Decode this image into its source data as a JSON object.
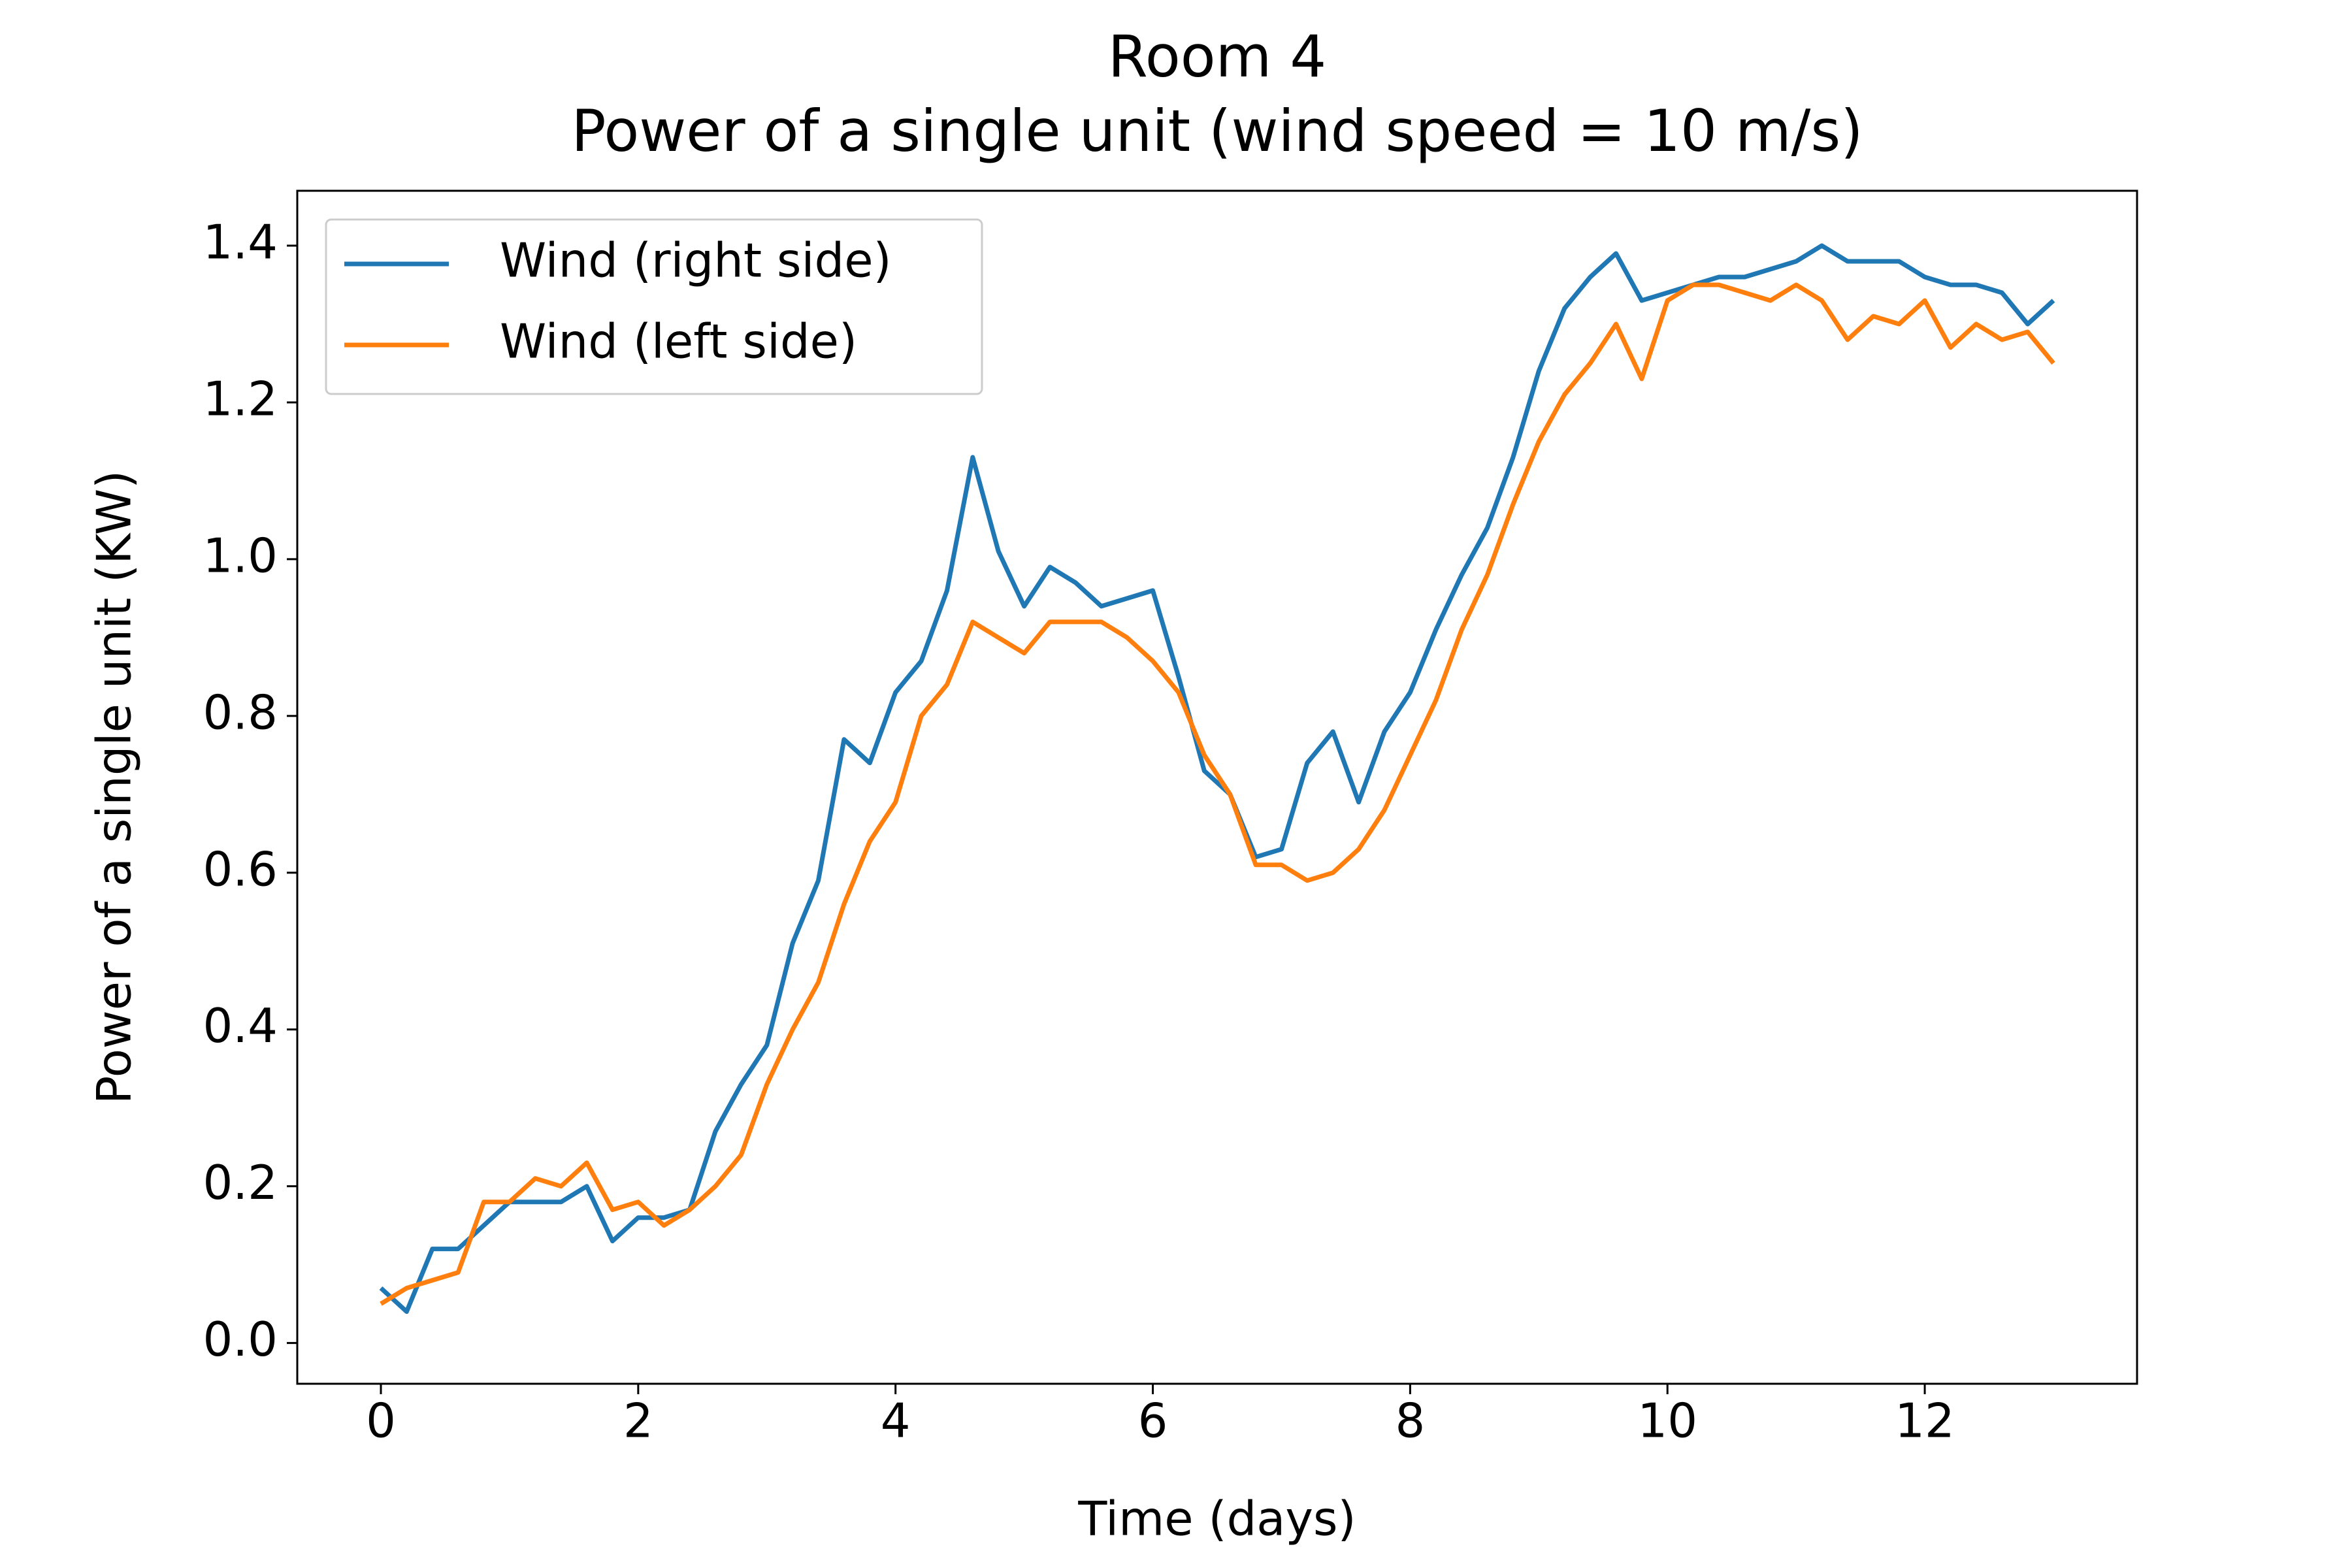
{
  "chart_data": {
    "type": "line",
    "title": "Room 4",
    "subtitle": "Power of a single unit (wind speed = 10 m/s)",
    "x_label": "Time (days)",
    "y_label": "Power of a single unit (KW)",
    "x": [
      0,
      0.2,
      0.4,
      0.6,
      0.8,
      1.0,
      1.2,
      1.4,
      1.6,
      1.8,
      2.0,
      2.2,
      2.4,
      2.6,
      2.8,
      3.0,
      3.2,
      3.4,
      3.6,
      3.8,
      4.0,
      4.2,
      4.4,
      4.6,
      4.8,
      5.0,
      5.2,
      5.4,
      5.6,
      5.8,
      6.0,
      6.2,
      6.4,
      6.6,
      6.8,
      7.0,
      7.2,
      7.4,
      7.6,
      7.8,
      8.0,
      8.2,
      8.4,
      8.6,
      8.8,
      9.0,
      9.2,
      9.4,
      9.6,
      9.8,
      10.0,
      10.2,
      10.4,
      10.6,
      10.8,
      11.0,
      11.2,
      11.4,
      11.6,
      11.8,
      12.0,
      12.2,
      12.4,
      12.6,
      12.8,
      13.0
    ],
    "series": [
      {
        "name": "Wind (right side)",
        "color": "#1f77b4",
        "values": [
          0.07,
          0.04,
          0.12,
          0.12,
          0.15,
          0.18,
          0.18,
          0.18,
          0.2,
          0.13,
          0.16,
          0.16,
          0.17,
          0.27,
          0.33,
          0.38,
          0.51,
          0.59,
          0.77,
          0.74,
          0.83,
          0.87,
          0.96,
          1.13,
          1.01,
          0.94,
          0.99,
          0.97,
          0.94,
          0.95,
          0.96,
          0.85,
          0.73,
          0.7,
          0.62,
          0.63,
          0.74,
          0.78,
          0.69,
          0.78,
          0.83,
          0.91,
          0.98,
          1.04,
          1.13,
          1.24,
          1.32,
          1.36,
          1.39,
          1.33,
          1.34,
          1.35,
          1.36,
          1.36,
          1.37,
          1.38,
          1.4,
          1.38,
          1.38,
          1.38,
          1.36,
          1.35,
          1.35,
          1.34,
          1.3,
          1.33
        ]
      },
      {
        "name": "Wind (left side)",
        "color": "#ff7f0e",
        "values": [
          0.05,
          0.07,
          0.08,
          0.09,
          0.18,
          0.18,
          0.21,
          0.2,
          0.23,
          0.17,
          0.18,
          0.15,
          0.17,
          0.2,
          0.24,
          0.33,
          0.4,
          0.46,
          0.56,
          0.64,
          0.69,
          0.8,
          0.84,
          0.92,
          0.9,
          0.88,
          0.92,
          0.92,
          0.92,
          0.9,
          0.87,
          0.83,
          0.75,
          0.7,
          0.61,
          0.61,
          0.59,
          0.6,
          0.63,
          0.68,
          0.75,
          0.82,
          0.91,
          0.98,
          1.07,
          1.15,
          1.21,
          1.25,
          1.3,
          1.23,
          1.33,
          1.35,
          1.35,
          1.34,
          1.33,
          1.35,
          1.33,
          1.28,
          1.31,
          1.3,
          1.33,
          1.27,
          1.3,
          1.28,
          1.29,
          1.25
        ]
      }
    ],
    "xlim": [
      -0.65,
      13.65
    ],
    "ylim": [
      -0.052,
      1.47
    ],
    "xticks": [
      0,
      2,
      4,
      6,
      8,
      10,
      12
    ],
    "yticks": [
      {
        "value": 0,
        "label": "0.0"
      },
      0.2,
      0.4,
      0.6,
      0.8,
      {
        "value": 1,
        "label": "1.0"
      },
      1.2,
      1.4
    ],
    "grid": false,
    "legend": "upper left"
  }
}
